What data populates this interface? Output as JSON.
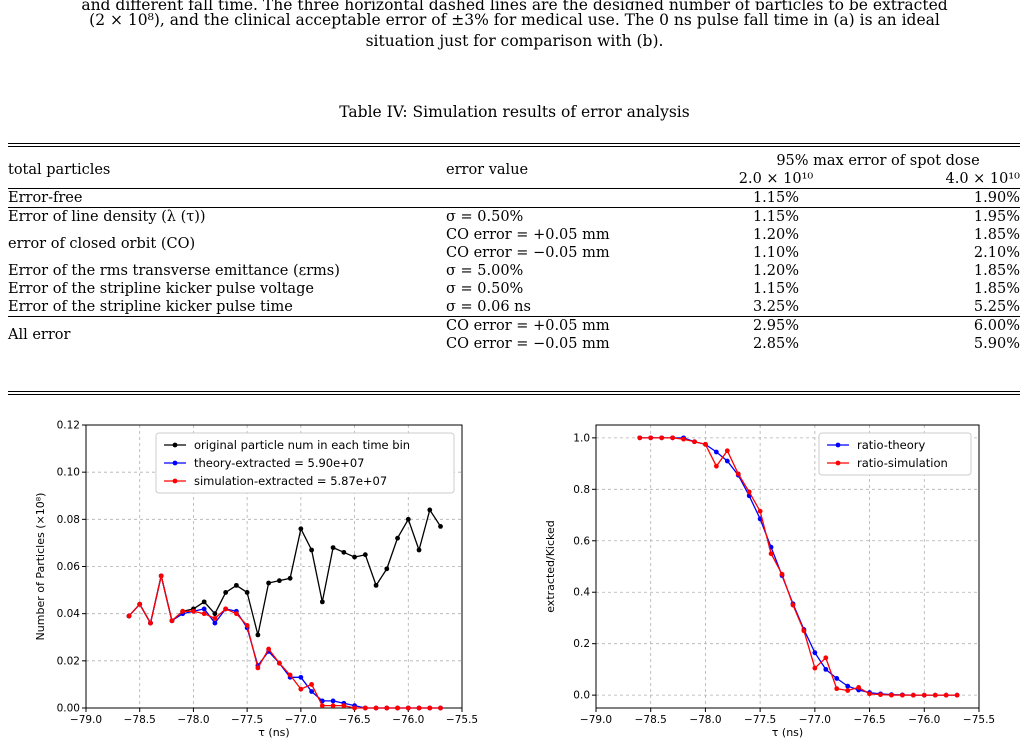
{
  "caption": {
    "line1": "and different fall time. The three horizontal dashed lines are the designed number of particles to be extracted",
    "line2": "(2 × 10⁸), and the clinical acceptable error of ±3% for medical use. The 0 ns pulse fall time in (a) is an ideal",
    "line3": "situation just for comparison with (b)."
  },
  "table": {
    "title": "Table IV: Simulation results of error analysis",
    "headers": {
      "total_particles": "total particles",
      "error_value": "error value",
      "spot_dose": "95% max error of spot dose",
      "dose_a": "2.0 × 10¹⁰",
      "dose_b": "4.0 × 10¹⁰"
    },
    "rows": [
      {
        "label": "Error-free",
        "value": "",
        "a": "1.15%",
        "b": "1.90%"
      },
      {
        "label": "Error of line density (λ (τ))",
        "value": "σ = 0.50%",
        "a": "1.15%",
        "b": "1.95%"
      },
      {
        "label": "error of closed orbit (CO)",
        "value": "CO error = +0.05 mm",
        "a": "1.20%",
        "b": "1.85%"
      },
      {
        "label": "",
        "value": "CO error = −0.05 mm",
        "a": "1.10%",
        "b": "2.10%"
      },
      {
        "label": "Error of the rms transverse emittance (εrms)",
        "value": "σ = 5.00%",
        "a": "1.20%",
        "b": "1.85%"
      },
      {
        "label": "Error of the stripline kicker pulse voltage",
        "value": "σ = 0.50%",
        "a": "1.15%",
        "b": "1.85%"
      },
      {
        "label": "Error of the stripline kicker pulse time",
        "value": "σ = 0.06 ns",
        "a": "3.25%",
        "b": "5.25%"
      },
      {
        "label": "All error",
        "value": "CO error = +0.05 mm",
        "a": "2.95%",
        "b": "6.00%"
      },
      {
        "label": "",
        "value": "CO error = −0.05 mm",
        "a": "2.85%",
        "b": "5.90%"
      }
    ]
  },
  "chart_data": [
    {
      "type": "line",
      "xlabel": "τ (ns)",
      "ylabel": "Number of Particles (×10⁸)",
      "xlim": [
        -79.0,
        -75.5
      ],
      "ylim": [
        0.0,
        0.12
      ],
      "xticks": [
        "−79.0",
        "−78.5",
        "−78.0",
        "−77.5",
        "−77.0",
        "−76.5",
        "−76.0",
        "−75.5"
      ],
      "yticks": [
        "0.00",
        "0.02",
        "0.04",
        "0.06",
        "0.08",
        "0.10",
        "0.12"
      ],
      "grid": true,
      "legend_position": "top-right",
      "x": [
        -78.6,
        -78.5,
        -78.4,
        -78.3,
        -78.2,
        -78.1,
        -78.0,
        -77.9,
        -77.8,
        -77.7,
        -77.6,
        -77.5,
        -77.4,
        -77.3,
        -77.2,
        -77.1,
        -77.0,
        -76.9,
        -76.8,
        -76.7,
        -76.6,
        -76.5,
        -76.4,
        -76.3,
        -76.2,
        -76.1,
        -76.0,
        -75.9,
        -75.8,
        -75.7
      ],
      "series": [
        {
          "name": "original particle num in each time bin",
          "color": "#000000",
          "values": [
            0.039,
            0.044,
            0.036,
            0.056,
            0.037,
            0.041,
            0.042,
            0.045,
            0.04,
            0.049,
            0.052,
            0.049,
            0.031,
            0.053,
            0.054,
            0.055,
            0.076,
            0.067,
            0.045,
            0.068,
            0.066,
            0.064,
            0.065,
            0.052,
            0.059,
            0.072,
            0.08,
            0.067,
            0.084,
            0.077
          ]
        },
        {
          "name": "theory-extracted = 5.90e+07",
          "color": "#0000ff",
          "values": [
            0.039,
            0.044,
            0.036,
            0.056,
            0.037,
            0.04,
            0.041,
            0.042,
            0.036,
            0.042,
            0.041,
            0.034,
            0.018,
            0.024,
            0.019,
            0.013,
            0.013,
            0.007,
            0.003,
            0.003,
            0.002,
            0.001,
            0.0,
            0.0,
            0.0,
            0.0,
            0.0,
            0.0,
            0.0,
            0.0
          ]
        },
        {
          "name": "simulation-extracted = 5.87e+07",
          "color": "#ff0000",
          "values": [
            0.039,
            0.044,
            0.036,
            0.056,
            0.037,
            0.041,
            0.041,
            0.04,
            0.038,
            0.042,
            0.04,
            0.035,
            0.017,
            0.025,
            0.019,
            0.014,
            0.008,
            0.01,
            0.001,
            0.001,
            0.001,
            0.0,
            0.0,
            0.0,
            0.0,
            0.0,
            0.0,
            0.0,
            0.0,
            0.0
          ]
        }
      ]
    },
    {
      "type": "line",
      "xlabel": "τ (ns)",
      "ylabel": "extracted/Kicked",
      "xlim": [
        -79.0,
        -75.5
      ],
      "ylim": [
        -0.05,
        1.05
      ],
      "xticks": [
        "−79.0",
        "−78.5",
        "−78.0",
        "−77.5",
        "−77.0",
        "−76.5",
        "−76.0",
        "−75.5"
      ],
      "yticks": [
        "0.0",
        "0.2",
        "0.4",
        "0.6",
        "0.8",
        "1.0"
      ],
      "grid": true,
      "legend_position": "top-right",
      "x": [
        -78.6,
        -78.5,
        -78.4,
        -78.3,
        -78.2,
        -78.1,
        -78.0,
        -77.9,
        -77.8,
        -77.7,
        -77.6,
        -77.5,
        -77.4,
        -77.3,
        -77.2,
        -77.1,
        -77.0,
        -76.9,
        -76.8,
        -76.7,
        -76.6,
        -76.5,
        -76.4,
        -76.3,
        -76.2,
        -76.1,
        -76.0,
        -75.9,
        -75.8,
        -75.7
      ],
      "series": [
        {
          "name": "ratio-theory",
          "color": "#0000ff",
          "values": [
            1.0,
            1.0,
            1.0,
            1.0,
            1.0,
            0.985,
            0.975,
            0.945,
            0.91,
            0.855,
            0.775,
            0.685,
            0.575,
            0.465,
            0.355,
            0.255,
            0.165,
            0.1,
            0.065,
            0.035,
            0.02,
            0.01,
            0.005,
            0.002,
            0.001,
            0.0,
            0.0,
            0.0,
            0.0,
            0.0
          ]
        },
        {
          "name": "ratio-simulation",
          "color": "#ff0000",
          "values": [
            1.0,
            1.0,
            1.0,
            1.0,
            0.995,
            0.985,
            0.975,
            0.89,
            0.95,
            0.86,
            0.79,
            0.715,
            0.55,
            0.47,
            0.35,
            0.25,
            0.105,
            0.145,
            0.025,
            0.018,
            0.03,
            0.005,
            0.002,
            0.0,
            0.0,
            0.0,
            0.0,
            0.0,
            0.0,
            0.0
          ]
        }
      ]
    }
  ]
}
